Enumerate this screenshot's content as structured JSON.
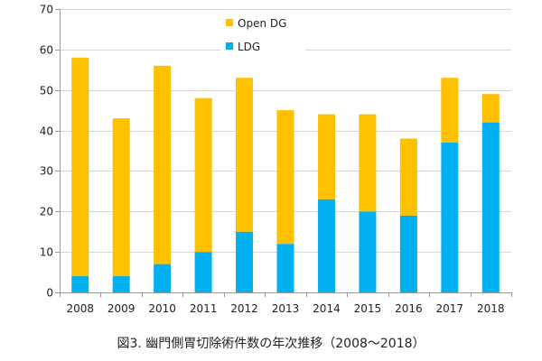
{
  "caption": "図3. 幽門側胃切除術件数の年次推移（2008～2018）",
  "colors": {
    "open_dg": "#FFC000",
    "ldg": "#00B0F0"
  },
  "chart_data": {
    "type": "bar",
    "stacked": true,
    "title": "",
    "xlabel": "",
    "ylabel": "",
    "ylim": [
      0,
      70
    ],
    "yticks": [
      0,
      10,
      20,
      30,
      40,
      50,
      60,
      70
    ],
    "grid": true,
    "legend_position": "top-center",
    "categories": [
      "2008",
      "2009",
      "2010",
      "2011",
      "2012",
      "2013",
      "2014",
      "2015",
      "2016",
      "2017",
      "2018"
    ],
    "series": [
      {
        "name": "LDG",
        "color": "#00B0F0",
        "values": [
          4,
          4,
          7,
          10,
          15,
          12,
          23,
          20,
          19,
          37,
          42
        ]
      },
      {
        "name": "Open DG",
        "color": "#FFC000",
        "values": [
          54,
          39,
          49,
          38,
          38,
          33,
          21,
          24,
          19,
          16,
          7
        ]
      }
    ]
  }
}
